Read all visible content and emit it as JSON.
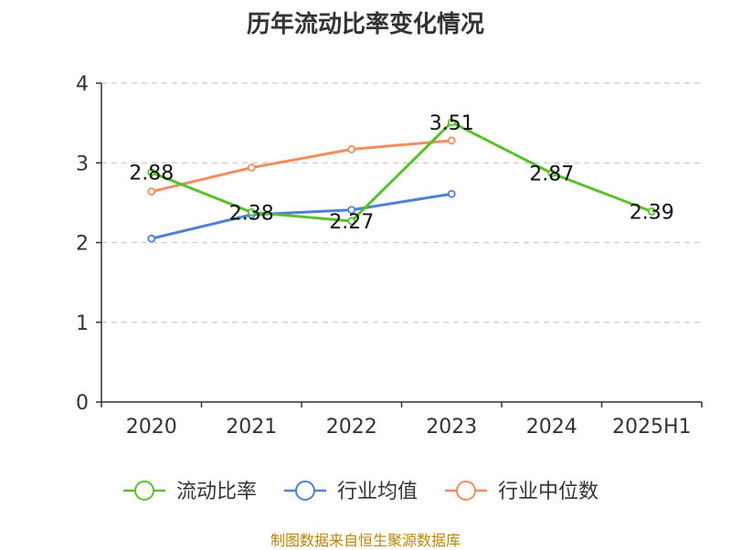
{
  "title": "历年流动比率变化情况",
  "source": "制图数据来自恒生聚源数据库",
  "chart_data": {
    "type": "line",
    "categories": [
      "2020",
      "2021",
      "2022",
      "2023",
      "2024",
      "2025H1"
    ],
    "yticks": [
      0,
      1,
      2,
      3,
      4
    ],
    "ylim": [
      0,
      4
    ],
    "grid": true,
    "legend_position": "bottom",
    "series": [
      {
        "name": "流动比率",
        "color": "#5ac12d",
        "values": [
          2.88,
          2.38,
          2.27,
          3.51,
          2.87,
          2.39
        ],
        "labels": [
          "2.88",
          "2.38",
          "2.27",
          "3.51",
          "2.87",
          "2.39"
        ],
        "show_labels": true
      },
      {
        "name": "行业均值",
        "color": "#4f7fd6",
        "values": [
          2.05,
          2.35,
          2.41,
          2.61,
          null,
          null
        ],
        "show_labels": false
      },
      {
        "name": "行业中位数",
        "color": "#f28d5c",
        "values": [
          2.64,
          2.94,
          3.17,
          3.28,
          null,
          null
        ],
        "show_labels": false
      }
    ]
  }
}
